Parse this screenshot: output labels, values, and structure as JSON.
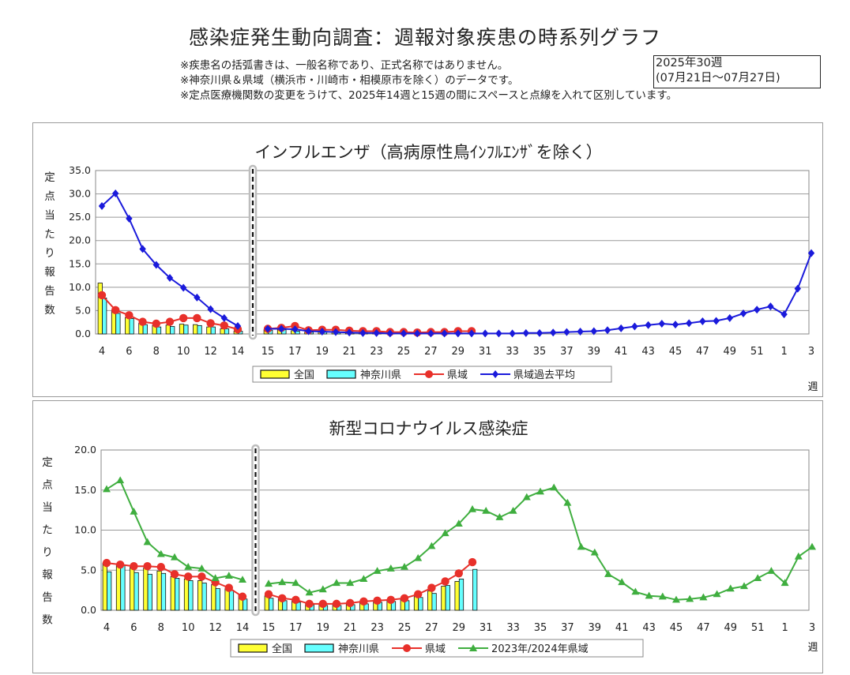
{
  "header": {
    "title": "感染症発生動向調査：週報対象疾患の時系列グラフ",
    "notes": [
      "※疾患名の括弧書きは、一般名称であり、正式名称ではありません。",
      "※神奈川県＆県域（横浜市・川崎市・相模原市を除く）のデータです。",
      "※定点医療機関数の変更をうけて、2025年14週と15週の間にスペースと点線を入れて区別しています。"
    ],
    "week_label": "2025年30週",
    "week_range": "(07月21日～07月27日)"
  },
  "chart_data": [
    {
      "type": "bar",
      "title": "インフルエンザ（高病原性鳥ｲﾝﾌﾙｴﾝｻﾞを除く）",
      "ylabel": "定点当たり報告数",
      "xlabel": "週",
      "ylim": [
        0,
        35
      ],
      "yticks": [
        "0.0",
        "5.0",
        "10.0",
        "15.0",
        "20.0",
        "25.0",
        "30.0",
        "35.0"
      ],
      "x_labels": [
        "4",
        "6",
        "8",
        "10",
        "12",
        "14",
        "15",
        "17",
        "19",
        "21",
        "23",
        "25",
        "27",
        "29",
        "31",
        "33",
        "35",
        "37",
        "39",
        "41",
        "43",
        "45",
        "47",
        "49",
        "51",
        "1",
        "3"
      ],
      "grid": true,
      "legend_position": "bottom",
      "separator_between": [
        "14",
        "15"
      ],
      "weeks_before": [
        4,
        5,
        6,
        7,
        8,
        9,
        10,
        11,
        12,
        13,
        14
      ],
      "weeks_after": [
        15,
        16,
        17,
        18,
        19,
        20,
        21,
        22,
        23,
        24,
        25,
        26,
        27,
        28,
        29,
        30,
        31,
        32,
        33,
        34,
        35,
        36,
        37,
        38,
        39,
        40,
        41,
        42,
        43,
        44,
        45,
        46,
        47,
        48,
        49,
        50,
        51,
        52,
        1,
        2,
        3
      ],
      "series": [
        {
          "name": "全国",
          "kind": "bar",
          "color": "#ffff33",
          "before": [
            10.9,
            5.0,
            3.5,
            2.3,
            1.8,
            1.9,
            2.1,
            2.0,
            1.5,
            1.1,
            0.6
          ],
          "after": [
            0.9,
            0.9,
            0.7,
            0.4,
            0.4,
            0.4,
            0.3,
            0.3,
            0.3,
            0.2,
            0.2,
            0.2,
            0.2,
            0.2,
            0.2,
            0.2
          ]
        },
        {
          "name": "神奈川県",
          "kind": "bar",
          "color": "#66ffff",
          "before": [
            7.7,
            4.4,
            3.3,
            2.0,
            1.5,
            1.6,
            1.9,
            1.8,
            1.5,
            1.1,
            0.6
          ],
          "after": [
            0.8,
            0.9,
            0.6,
            0.4,
            0.4,
            0.3,
            0.3,
            0.3,
            0.3,
            0.2,
            0.2,
            0.2,
            0.2,
            0.2,
            0.2,
            0.2
          ]
        },
        {
          "name": "県域",
          "kind": "line",
          "color": "#e8302a",
          "marker": "circle",
          "before": [
            8.3,
            5.1,
            4.0,
            2.6,
            2.2,
            2.6,
            3.4,
            3.4,
            2.3,
            1.8,
            1.0
          ],
          "after": [
            1.1,
            1.3,
            1.7,
            0.8,
            0.9,
            0.9,
            0.7,
            0.6,
            0.6,
            0.4,
            0.4,
            0.3,
            0.4,
            0.4,
            0.6,
            0.6
          ]
        },
        {
          "name": "県域過去平均",
          "kind": "line",
          "color": "#1a1adb",
          "marker": "diamond",
          "before": [
            27.4,
            30.1,
            24.7,
            18.2,
            14.8,
            12.0,
            9.9,
            7.8,
            5.3,
            3.4,
            1.7
          ],
          "after": [
            1.1,
            1.1,
            1.0,
            0.6,
            0.5,
            0.4,
            0.3,
            0.2,
            0.2,
            0.1,
            0.1,
            0.1,
            0.1,
            0.1,
            0.1,
            0.1,
            0.1,
            0.1,
            0.1,
            0.2,
            0.2,
            0.3,
            0.4,
            0.5,
            0.6,
            0.8,
            1.2,
            1.6,
            1.9,
            2.2,
            2.0,
            2.3,
            2.7,
            2.8,
            3.4,
            4.4,
            5.2,
            5.9,
            4.2,
            9.7,
            17.3
          ]
        }
      ]
    },
    {
      "type": "bar",
      "title": "新型コロナウイルス感染症",
      "ylabel": "定点当たり報告数",
      "xlabel": "週",
      "ylim": [
        0,
        20
      ],
      "yticks": [
        "0.0",
        "5.0",
        "10.0",
        "15.0",
        "20.0"
      ],
      "x_labels": [
        "4",
        "6",
        "8",
        "10",
        "12",
        "14",
        "15",
        "17",
        "19",
        "21",
        "23",
        "25",
        "27",
        "29",
        "31",
        "33",
        "35",
        "37",
        "39",
        "41",
        "43",
        "45",
        "47",
        "49",
        "51",
        "1",
        "3"
      ],
      "grid": true,
      "legend_position": "bottom",
      "separator_between": [
        "14",
        "15"
      ],
      "weeks_before": [
        4,
        5,
        6,
        7,
        8,
        9,
        10,
        11,
        12,
        13,
        14
      ],
      "weeks_after": [
        15,
        16,
        17,
        18,
        19,
        20,
        21,
        22,
        23,
        24,
        25,
        26,
        27,
        28,
        29,
        30,
        31,
        32,
        33,
        34,
        35,
        36,
        37,
        38,
        39,
        40,
        41,
        42,
        43,
        44,
        45,
        46,
        47,
        48,
        49,
        50,
        51,
        52,
        1,
        2,
        3
      ],
      "series": [
        {
          "name": "全国",
          "kind": "bar",
          "color": "#ffff33",
          "before": [
            5.9,
            5.7,
            5.4,
            5.3,
            4.9,
            4.2,
            3.9,
            3.7,
            3.2,
            2.7,
            2.0
          ],
          "after": [
            1.8,
            1.5,
            1.2,
            0.9,
            0.8,
            0.8,
            0.9,
            1.0,
            1.2,
            1.3,
            1.4,
            1.7,
            2.4,
            3.0,
            3.6
          ]
        },
        {
          "name": "神奈川県",
          "kind": "bar",
          "color": "#66ffff",
          "before": [
            4.8,
            5.6,
            4.7,
            4.5,
            4.6,
            4.0,
            3.7,
            3.4,
            2.7,
            2.5,
            1.4
          ],
          "after": [
            1.5,
            1.2,
            1.0,
            0.7,
            0.6,
            0.6,
            0.7,
            0.8,
            1.0,
            1.1,
            1.2,
            1.6,
            2.1,
            3.1,
            3.9,
            5.1
          ]
        },
        {
          "name": "県域",
          "kind": "line",
          "color": "#e8302a",
          "marker": "circle",
          "before": [
            5.9,
            5.7,
            5.5,
            5.5,
            5.4,
            4.5,
            4.2,
            4.2,
            3.5,
            2.8,
            1.7
          ],
          "after": [
            2.0,
            1.5,
            1.3,
            0.8,
            0.8,
            0.8,
            0.9,
            1.1,
            1.2,
            1.3,
            1.5,
            2.0,
            2.8,
            3.6,
            4.6,
            6.0
          ]
        },
        {
          "name": "2023年/2024年県域",
          "kind": "line",
          "color": "#3fae3f",
          "marker": "triangle",
          "before": [
            15.1,
            16.2,
            12.3,
            8.5,
            7.0,
            6.6,
            5.4,
            5.2,
            4.0,
            4.3,
            3.8
          ],
          "after": [
            3.3,
            3.5,
            3.4,
            2.2,
            2.6,
            3.4,
            3.4,
            3.9,
            4.9,
            5.2,
            5.4,
            6.5,
            8.0,
            9.6,
            10.8,
            12.6,
            12.4,
            11.6,
            12.4,
            14.1,
            14.8,
            15.3,
            13.4,
            7.9,
            7.2,
            4.5,
            3.5,
            2.3,
            1.8,
            1.7,
            1.3,
            1.4,
            1.6,
            2.0,
            2.7,
            3.0,
            4.0,
            4.9,
            3.4,
            6.7,
            7.9
          ]
        }
      ]
    }
  ]
}
